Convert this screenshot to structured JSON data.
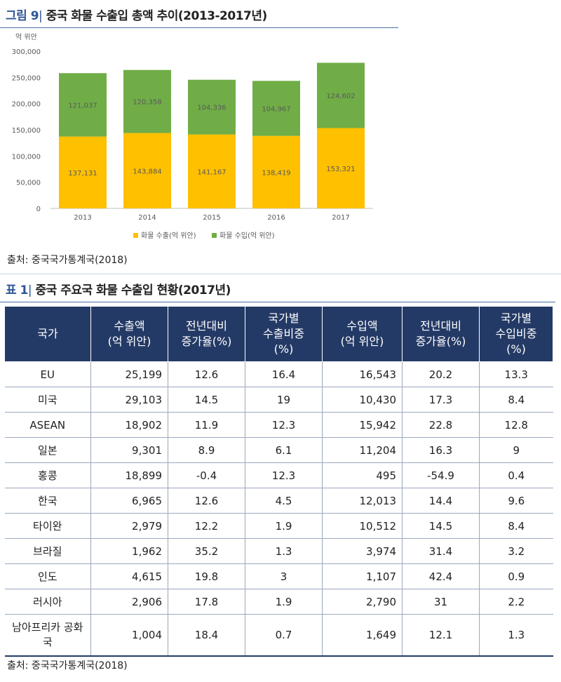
{
  "figure": {
    "label": "그림 9",
    "title": "중국 화물 수출입 총액 추이(2013-2017년)",
    "source": "출처: 중국국가통계국(2018)"
  },
  "chart_data": {
    "type": "bar",
    "stacked": true,
    "title": "중국 화물 수출입 총액 추이(2013-2017년)",
    "unit_label": "억 위안",
    "categories": [
      "2013",
      "2014",
      "2015",
      "2016",
      "2017"
    ],
    "series": [
      {
        "name": "화물 수출(억 위안)",
        "color": "#ffc000",
        "values": [
          137131,
          143884,
          141167,
          138419,
          153321
        ],
        "labels": [
          "137,131",
          "143,884",
          "141,167",
          "138,419",
          "153,321"
        ]
      },
      {
        "name": "화물 수입(억 위안)",
        "color": "#70ad47",
        "values": [
          121037,
          120358,
          104336,
          104967,
          124602
        ],
        "labels": [
          "121,037",
          "120,358",
          "104,336",
          "104,967",
          "124,602"
        ]
      }
    ],
    "yticks": [
      "0",
      "50,000",
      "100,000",
      "150,000",
      "200,000",
      "250,000",
      "300,000"
    ],
    "ylim": [
      0,
      300000
    ],
    "legend_position": "bottom"
  },
  "table": {
    "label": "표 1",
    "title": "중국 주요국 화물 수출입 현황(2017년)",
    "headers": [
      [
        "국가"
      ],
      [
        "수출액",
        "(억 위안)"
      ],
      [
        "전년대비",
        "증가율(%)"
      ],
      [
        "국가별",
        "수출비중",
        "(%)"
      ],
      [
        "수입액",
        "(억 위안)"
      ],
      [
        "전년대비",
        "증가율(%)"
      ],
      [
        "국가별",
        "수입비중",
        "(%)"
      ]
    ],
    "rows": [
      [
        "EU",
        "25,199",
        "12.6",
        "16.4",
        "16,543",
        "20.2",
        "13.3"
      ],
      [
        "미국",
        "29,103",
        "14.5",
        "19",
        "10,430",
        "17.3",
        "8.4"
      ],
      [
        "ASEAN",
        "18,902",
        "11.9",
        "12.3",
        "15,942",
        "22.8",
        "12.8"
      ],
      [
        "일본",
        "9,301",
        "8.9",
        "6.1",
        "11,204",
        "16.3",
        "9"
      ],
      [
        "홍콩",
        "18,899",
        "-0.4",
        "12.3",
        "495",
        "-54.9",
        "0.4"
      ],
      [
        "한국",
        "6,965",
        "12.6",
        "4.5",
        "12,013",
        "14.4",
        "9.6"
      ],
      [
        "타이완",
        "2,979",
        "12.2",
        "1.9",
        "10,512",
        "14.5",
        "8.4"
      ],
      [
        "브라질",
        "1,962",
        "35.2",
        "1.3",
        "3,974",
        "31.4",
        "3.2"
      ],
      [
        "인도",
        "4,615",
        "19.8",
        "3",
        "1,107",
        "42.4",
        "0.9"
      ],
      [
        "러시아",
        "2,906",
        "17.8",
        "1.9",
        "2,790",
        "31",
        "2.2"
      ],
      [
        "남아프리카 공화국",
        "1,004",
        "18.4",
        "0.7",
        "1,649",
        "12.1",
        "1.3"
      ]
    ],
    "source": "출처: 중국국가통계국(2018)"
  }
}
